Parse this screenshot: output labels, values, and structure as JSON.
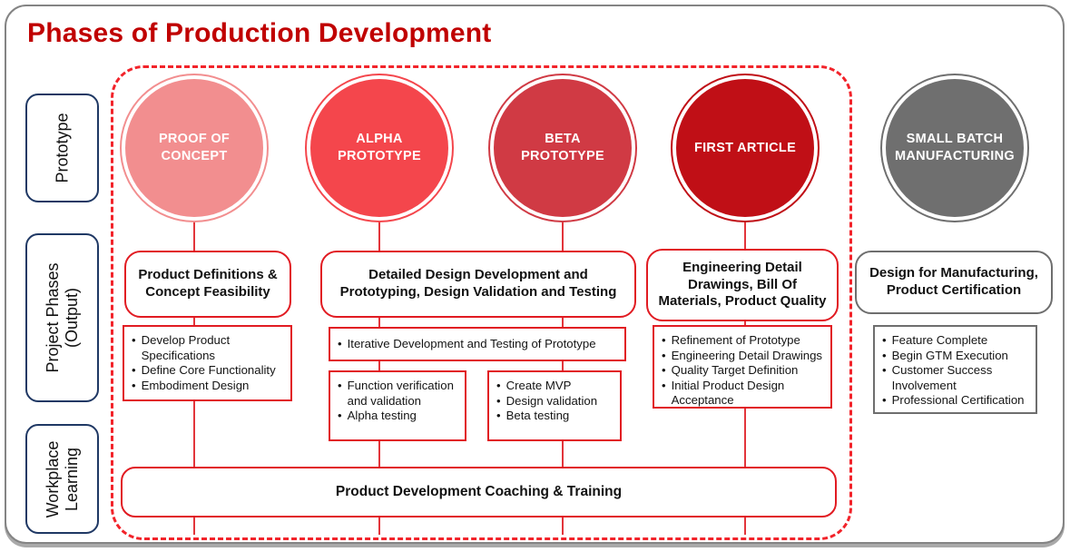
{
  "title": "Phases of Production Development",
  "side_labels": {
    "prototype": "Prototype",
    "project_phases": "Project Phases (Output)",
    "workplace_learning": "Workplace Learning"
  },
  "circles": {
    "proof_of_concept": {
      "label": "PROOF OF CONCEPT",
      "color": "#F28E8F"
    },
    "alpha_prototype": {
      "label": "ALPHA PROTOTYPE",
      "color": "#F4464C"
    },
    "beta_prototype": {
      "label": "BETA PROTOTYPE",
      "color": "#D03A44"
    },
    "first_article": {
      "label": "FIRST ARTICLE",
      "color": "#C00F16"
    },
    "small_batch_manufacturing": {
      "label": "SMALL BATCH MANUFACTURING",
      "color": "#6F6F6F"
    }
  },
  "outputs": {
    "concept": "Product Definitions & Concept Feasibility",
    "detailed_design": "Detailed Design Development and Prototyping, Design Validation and Testing",
    "engineering": "Engineering Detail Drawings, Bill Of Materials, Product Quality",
    "manufacturing": "Design for Manufacturing, Product Certification"
  },
  "details": {
    "concept": [
      "Develop Product Specifications",
      "Define Core Functionality",
      "Embodiment Design"
    ],
    "iterative": [
      "Iterative Development and Testing of Prototype"
    ],
    "alpha": [
      "Function verification and validation",
      "Alpha testing"
    ],
    "beta": [
      "Create MVP",
      "Design validation",
      "Beta testing"
    ],
    "engineering": [
      "Refinement of Prototype",
      "Engineering Detail Drawings",
      "Quality Target Definition",
      "Initial Product Design Acceptance"
    ],
    "manufacturing": [
      "Feature Complete",
      "Begin GTM Execution",
      "Customer Success Involvement",
      "Professional Certification"
    ]
  },
  "footer": {
    "coaching": "Product Development Coaching & Training"
  },
  "colors": {
    "title_red": "#C00000",
    "box_border_red": "#E11B22",
    "dashed_border_red": "#F2232A",
    "connector_red": "#E2353B",
    "side_label_navy": "#1F3864",
    "gray_phase": "#6F6F6F",
    "frame_gray": "#848484"
  }
}
